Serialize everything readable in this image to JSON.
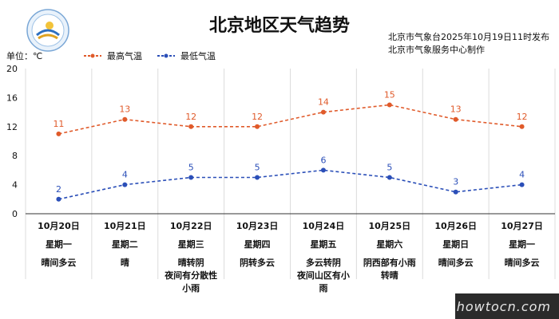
{
  "header": {
    "title": "北京地区天气趋势",
    "issuer_line1": "北京市气象台2025年10月19日11时发布",
    "issuer_line2": "北京市气象服务中心制作",
    "unit_label": "单位：℃"
  },
  "colors": {
    "high": "#e05a2a",
    "low": "#2b4fb8",
    "grid": "#dcdcdc"
  },
  "days": [
    {
      "date": "10月20日",
      "week": "星期一",
      "weather": "晴间多云"
    },
    {
      "date": "10月21日",
      "week": "星期二",
      "weather": "晴"
    },
    {
      "date": "10月22日",
      "week": "星期三",
      "weather": "晴转阴\n夜间有分散性\n小雨"
    },
    {
      "date": "10月23日",
      "week": "星期四",
      "weather": "阴转多云"
    },
    {
      "date": "10月24日",
      "week": "星期五",
      "weather": "多云转阴\n夜间山区有小\n雨"
    },
    {
      "date": "10月25日",
      "week": "星期六",
      "weather": "阴西部有小雨\n转晴"
    },
    {
      "date": "10月26日",
      "week": "星期日",
      "weather": "晴间多云"
    },
    {
      "date": "10月27日",
      "week": "星期一",
      "weather": "晴间多云"
    }
  ],
  "chart_data": {
    "type": "line",
    "categories": [
      "10月20日",
      "10月21日",
      "10月22日",
      "10月23日",
      "10月24日",
      "10月25日",
      "10月26日",
      "10月27日"
    ],
    "series": [
      {
        "name": "最高气温",
        "values": [
          11,
          13,
          12,
          12,
          14,
          15,
          13,
          12
        ],
        "style": "dashed",
        "color": "#e05a2a"
      },
      {
        "name": "最低气温",
        "values": [
          2,
          4,
          5,
          5,
          6,
          5,
          3,
          4
        ],
        "style": "dashed",
        "color": "#2b4fb8"
      }
    ],
    "ylim": [
      0,
      20
    ],
    "yticks": [
      0,
      4,
      8,
      12,
      16,
      20
    ],
    "ylabel": "单位：℃",
    "grid": "vertical",
    "legend_position": "top-left"
  },
  "watermark": "howtocn.com"
}
